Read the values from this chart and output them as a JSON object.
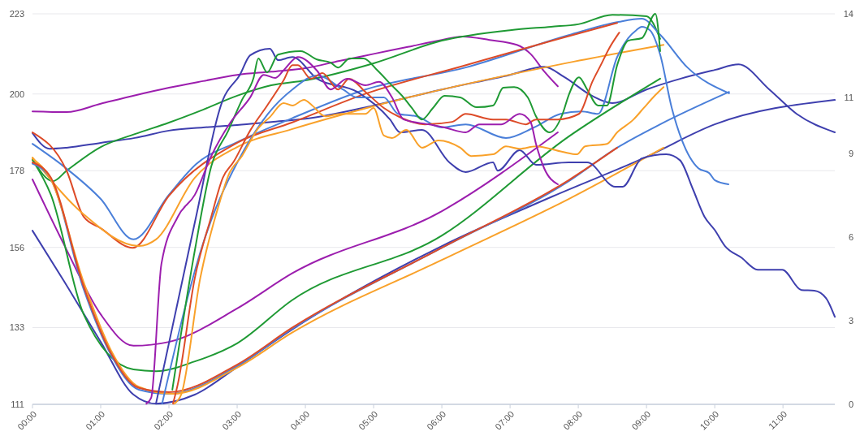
{
  "chart_data": {
    "type": "line",
    "xlim": [
      0,
      11.76
    ],
    "ylim": [
      111,
      223
    ],
    "y2lim": [
      0,
      14
    ],
    "xticks": [
      {
        "value": 0,
        "label": "00:00"
      },
      {
        "value": 1,
        "label": "01:00"
      },
      {
        "value": 2,
        "label": "02:00"
      },
      {
        "value": 3,
        "label": "03:00"
      },
      {
        "value": 4,
        "label": "04:00"
      },
      {
        "value": 5,
        "label": "05:00"
      },
      {
        "value": 6,
        "label": "06:00"
      },
      {
        "value": 7,
        "label": "07:00"
      },
      {
        "value": 8,
        "label": "08:00"
      },
      {
        "value": 9,
        "label": "09:00"
      },
      {
        "value": 10,
        "label": "10:00"
      },
      {
        "value": 11,
        "label": "11:00"
      }
    ],
    "yticks": [
      111,
      133,
      156,
      178,
      200,
      223
    ],
    "y2ticks": [
      0,
      3,
      6,
      9,
      11,
      14
    ],
    "grid": "y",
    "marker": "none",
    "line_style": "solid",
    "series": [
      {
        "color": "#9c1eae",
        "x": [
          0,
          0.5,
          1,
          1.5,
          2,
          2.5,
          3,
          3.5,
          4,
          4.5,
          5,
          5.5,
          6,
          6.3,
          6.7,
          7.1,
          7.3,
          7.5,
          7.7
        ],
        "values": [
          195,
          194.8,
          197.2,
          199.6,
          201.8,
          203.7,
          205.5,
          206.4,
          207.4,
          209.5,
          211.5,
          213.5,
          215.5,
          216.5,
          215.5,
          214.1,
          211.5,
          206.5,
          202.2
        ]
      },
      {
        "color": "#3e3fae",
        "x": [
          0,
          0.25,
          0.5,
          1,
          1.5,
          2,
          2.5,
          3,
          3.5,
          4,
          5,
          6,
          7,
          7.5,
          7.8,
          8.2,
          8.5,
          9,
          9.5,
          10,
          10.35,
          10.8,
          11.2,
          11.76
        ],
        "values": [
          188.8,
          184.3,
          184.6,
          186.0,
          187.4,
          189.5,
          190.4,
          191.1,
          192.0,
          192.9,
          196.7,
          201.3,
          205.5,
          207.8,
          204.8,
          199.5,
          197.4,
          201.3,
          204.4,
          206.9,
          208.5,
          201.3,
          194.3,
          189.0
        ]
      },
      {
        "color": "#1f9a34",
        "x": [
          0,
          0.3,
          0.5,
          1,
          1.5,
          2,
          2.5,
          3,
          3.5,
          4,
          5,
          6,
          7,
          7.6,
          8,
          8.5,
          9,
          9.2
        ],
        "values": [
          181.3,
          175.0,
          178.0,
          184.8,
          188.5,
          191.8,
          195.5,
          199.5,
          202.5,
          203.9,
          208.8,
          215.3,
          218.3,
          219.3,
          220.0,
          222.7,
          222.3,
          215.8
        ]
      },
      {
        "color": "#4a7fd9",
        "x": [
          0,
          0.46,
          1,
          1.48,
          2,
          2.4,
          3,
          3.8,
          4.88,
          6.35,
          7.86,
          8.57,
          8.93,
          9.2,
          9.6,
          10.21
        ],
        "values": [
          185.7,
          179.2,
          169.9,
          158.3,
          171.1,
          179.9,
          186.2,
          193.0,
          201.3,
          207.6,
          216.9,
          220.6,
          221.6,
          217.0,
          207.6,
          200.2
        ]
      },
      {
        "color": "#dd4b28",
        "x": [
          0,
          0.5,
          0.75,
          1,
          1.47,
          2,
          3,
          3.8,
          4.9,
          6.3,
          7.62,
          8.57
        ],
        "values": [
          189.0,
          178.0,
          164.8,
          161.5,
          155.9,
          170.8,
          186.0,
          191.8,
          200.2,
          208.0,
          215.3,
          220.4
        ]
      },
      {
        "color": "#f9a12a",
        "x": [
          0,
          0.75,
          1.56,
          1.81,
          2.38,
          3,
          3.8,
          4.9,
          7.86,
          9.25
        ],
        "values": [
          181.8,
          165.5,
          156.4,
          158.3,
          176.0,
          184.8,
          189.9,
          196.0,
          209.0,
          214.1
        ]
      },
      {
        "color": "#3e3fae",
        "x": [
          0,
          0.46,
          1,
          1.48,
          1.81,
          2.38,
          3,
          3.8,
          6,
          7.62,
          9,
          10,
          11.76
        ],
        "values": [
          160.8,
          146.4,
          128.9,
          113.8,
          111.2,
          113.8,
          121.7,
          132.4,
          156.4,
          170.6,
          182.0,
          191.3,
          198.3
        ]
      },
      {
        "color": "#9c1eae",
        "x": [
          0,
          0.46,
          1,
          1.48,
          2,
          3,
          3.8,
          6,
          7.7
        ],
        "values": [
          175.5,
          156.9,
          136.8,
          127.8,
          128.9,
          138.5,
          148.5,
          166.4,
          189.0
        ]
      },
      {
        "color": "#1f9a34",
        "x": [
          0,
          0.27,
          0.75,
          1.48,
          1.81,
          2.38,
          3,
          3.8,
          6,
          7.86,
          9.2
        ],
        "values": [
          181.1,
          171.1,
          136.8,
          121.0,
          120.5,
          123.3,
          128.5,
          140.8,
          159.4,
          187.8,
          204.4
        ]
      },
      {
        "color": "#4a7fd9",
        "x": [
          0,
          0.27,
          0.75,
          1.15,
          1.56,
          2,
          3,
          3.8,
          6,
          7.86,
          8.57,
          9.2,
          10.21
        ],
        "values": [
          180.0,
          175.5,
          144.0,
          125.2,
          115.2,
          114.0,
          122.0,
          132.6,
          155.9,
          175.0,
          184.6,
          191.3,
          200.6
        ]
      },
      {
        "color": "#f9a12a",
        "x": [
          0,
          0.27,
          0.75,
          1.15,
          1.56,
          2.05,
          3,
          3.8,
          6,
          7.86,
          9.25
        ],
        "values": [
          181.5,
          175.5,
          146.0,
          126.5,
          116.0,
          114.0,
          121.5,
          131.5,
          152.4,
          169.9,
          184.6
        ]
      },
      {
        "color": "#dd4b28",
        "x": [
          0,
          0.27,
          0.75,
          1.15,
          1.56,
          2,
          3,
          3.8,
          6,
          7.86,
          8.57
        ],
        "values": [
          180.4,
          176.0,
          144.8,
          125.7,
          115.7,
          114.5,
          122.4,
          132.9,
          155.9,
          175.3,
          184.6
        ]
      },
      {
        "color": "#3e3fae",
        "x": [
          1.81,
          2.38,
          2.79,
          3.04,
          3.19,
          3.48,
          3.6,
          3.81,
          4.17,
          4.76,
          5.24,
          5.39,
          5.71,
          6.11,
          6.35,
          6.75,
          6.82,
          7.14,
          7.38,
          7.86,
          8.13,
          8.54,
          8.65,
          8.93,
          9.29,
          9.49,
          9.68,
          9.85,
          10,
          10.15,
          10.39,
          10.63,
          10.99,
          11.27,
          11.46,
          11.63,
          11.76
        ],
        "values": [
          111.2,
          163.2,
          198.3,
          205.5,
          211.1,
          213.0,
          209.7,
          210.6,
          204.4,
          200.6,
          192.7,
          189.0,
          189.7,
          180.4,
          177.6,
          180.4,
          178.0,
          183.9,
          179.7,
          180.4,
          180.4,
          173.4,
          173.4,
          181.5,
          182.7,
          181.0,
          172.7,
          164.8,
          161.0,
          156.4,
          153.1,
          149.6,
          149.6,
          143.8,
          143.6,
          141.5,
          136.1
        ]
      },
      {
        "color": "#4a7fd9",
        "x": [
          1.9,
          2.5,
          3.1,
          3.45,
          3.81,
          4.17,
          4.55,
          4.76,
          5.15,
          5.36,
          5.63,
          6.0,
          6.35,
          6.94,
          7.35,
          7.74,
          8.05,
          8.29,
          8.57,
          8.73,
          8.85,
          8.93,
          9.05,
          9.2,
          9.37,
          9.52,
          9.76,
          9.92,
          10.0,
          10.2
        ],
        "values": [
          111.2,
          157.1,
          183.9,
          194.3,
          201.3,
          205.3,
          201.3,
          199.0,
          199.0,
          194.3,
          193.6,
          190.4,
          191.3,
          187.4,
          190.4,
          194.3,
          195.0,
          194.3,
          210.6,
          216.0,
          218.3,
          219.3,
          218.3,
          211.3,
          196.0,
          186.7,
          178.7,
          177.3,
          175.3,
          174.1
        ]
      },
      {
        "color": "#1f9a34",
        "x": [
          2.05,
          2.38,
          2.62,
          2.87,
          3.07,
          3.24,
          3.31,
          3.44,
          3.6,
          3.93,
          4.17,
          4.37,
          4.48,
          4.65,
          4.85,
          5.06,
          5.24,
          5.44,
          5.56,
          5.71,
          5.87,
          6.04,
          6.27,
          6.51,
          6.75,
          6.9,
          7.06,
          7.26,
          7.38,
          7.58,
          7.77,
          7.86,
          8.01,
          8.13,
          8.29,
          8.42,
          8.57,
          8.73,
          8.93,
          9.13,
          9.2
        ],
        "values": [
          115.2,
          155.2,
          179.2,
          189.5,
          198.3,
          204.6,
          210.2,
          206.2,
          211.3,
          212.3,
          209.9,
          209.0,
          207.6,
          210.2,
          210.2,
          206.7,
          203.0,
          199.0,
          196.0,
          192.7,
          196.0,
          199.5,
          199.0,
          196.2,
          196.7,
          201.8,
          202.0,
          199.0,
          193.6,
          189.0,
          194.3,
          199.7,
          204.8,
          201.3,
          196.7,
          196.7,
          208.3,
          215.3,
          216.0,
          223.0,
          212.3
        ]
      },
      {
        "color": "#dd4b28",
        "x": [
          2.06,
          2.13,
          2.38,
          2.62,
          2.79,
          2.95,
          3.19,
          3.44,
          3.68,
          3.81,
          3.89,
          4.08,
          4.25,
          4.48,
          4.64,
          4.88,
          5.15,
          5.36,
          5.75,
          6.15,
          6.35,
          6.75,
          6.94,
          7.23,
          7.38,
          7.7,
          8.01,
          8.21,
          8.33,
          8.45,
          8.6
        ],
        "values": [
          111.2,
          116.8,
          147.3,
          164.8,
          176.0,
          180.6,
          189.5,
          196.7,
          203.9,
          208.3,
          208.3,
          204.4,
          206.0,
          201.3,
          204.4,
          200.6,
          196.0,
          193.6,
          191.3,
          192.0,
          194.3,
          192.7,
          192.7,
          191.3,
          192.7,
          192.7,
          194.3,
          203.7,
          208.3,
          213.0,
          217.6
        ]
      },
      {
        "color": "#f9a12a",
        "x": [
          2.08,
          2.18,
          2.46,
          2.75,
          2.87,
          3.07,
          3.31,
          3.48,
          3.68,
          3.81,
          3.98,
          4.1,
          4.29,
          4.52,
          4.88,
          5.0,
          5.15,
          5.27,
          5.48,
          5.71,
          5.95,
          6.27,
          6.43,
          6.75,
          6.94,
          7.14,
          7.38,
          7.77,
          7.98,
          8.1,
          8.42,
          8.57,
          8.81,
          8.96,
          9.13,
          9.25
        ],
        "values": [
          111.2,
          113.8,
          147.3,
          169.4,
          176.6,
          182.2,
          190.2,
          193.4,
          197.4,
          196.7,
          198.3,
          196.7,
          193.6,
          194.3,
          194.3,
          196.0,
          188.1,
          187.4,
          189.7,
          184.6,
          186.7,
          184.6,
          182.2,
          182.7,
          185.0,
          184.3,
          185.0,
          183.4,
          182.7,
          185.0,
          185.7,
          189.0,
          192.7,
          196.0,
          199.7,
          202.0
        ]
      },
      {
        "color": "#9c1eae",
        "x": [
          1.67,
          1.74,
          1.89,
          2.13,
          2.38,
          2.62,
          2.9,
          3.19,
          3.39,
          3.56,
          3.69,
          3.89,
          4.17,
          4.37,
          4.61,
          4.88,
          5.08,
          5.27,
          5.44,
          5.8,
          6.04,
          6.35,
          6.55,
          6.87,
          7.14,
          7.3,
          7.38,
          7.5,
          7.7
        ],
        "values": [
          111.2,
          112.9,
          151.3,
          164.8,
          171.1,
          182.2,
          191.8,
          199.0,
          205.5,
          204.6,
          207.0,
          210.6,
          206.7,
          201.3,
          204.4,
          202.5,
          203.5,
          199.0,
          192.7,
          191.3,
          190.4,
          189.0,
          191.3,
          191.3,
          194.3,
          192.0,
          185.7,
          178.7,
          174.1
        ]
      }
    ]
  }
}
